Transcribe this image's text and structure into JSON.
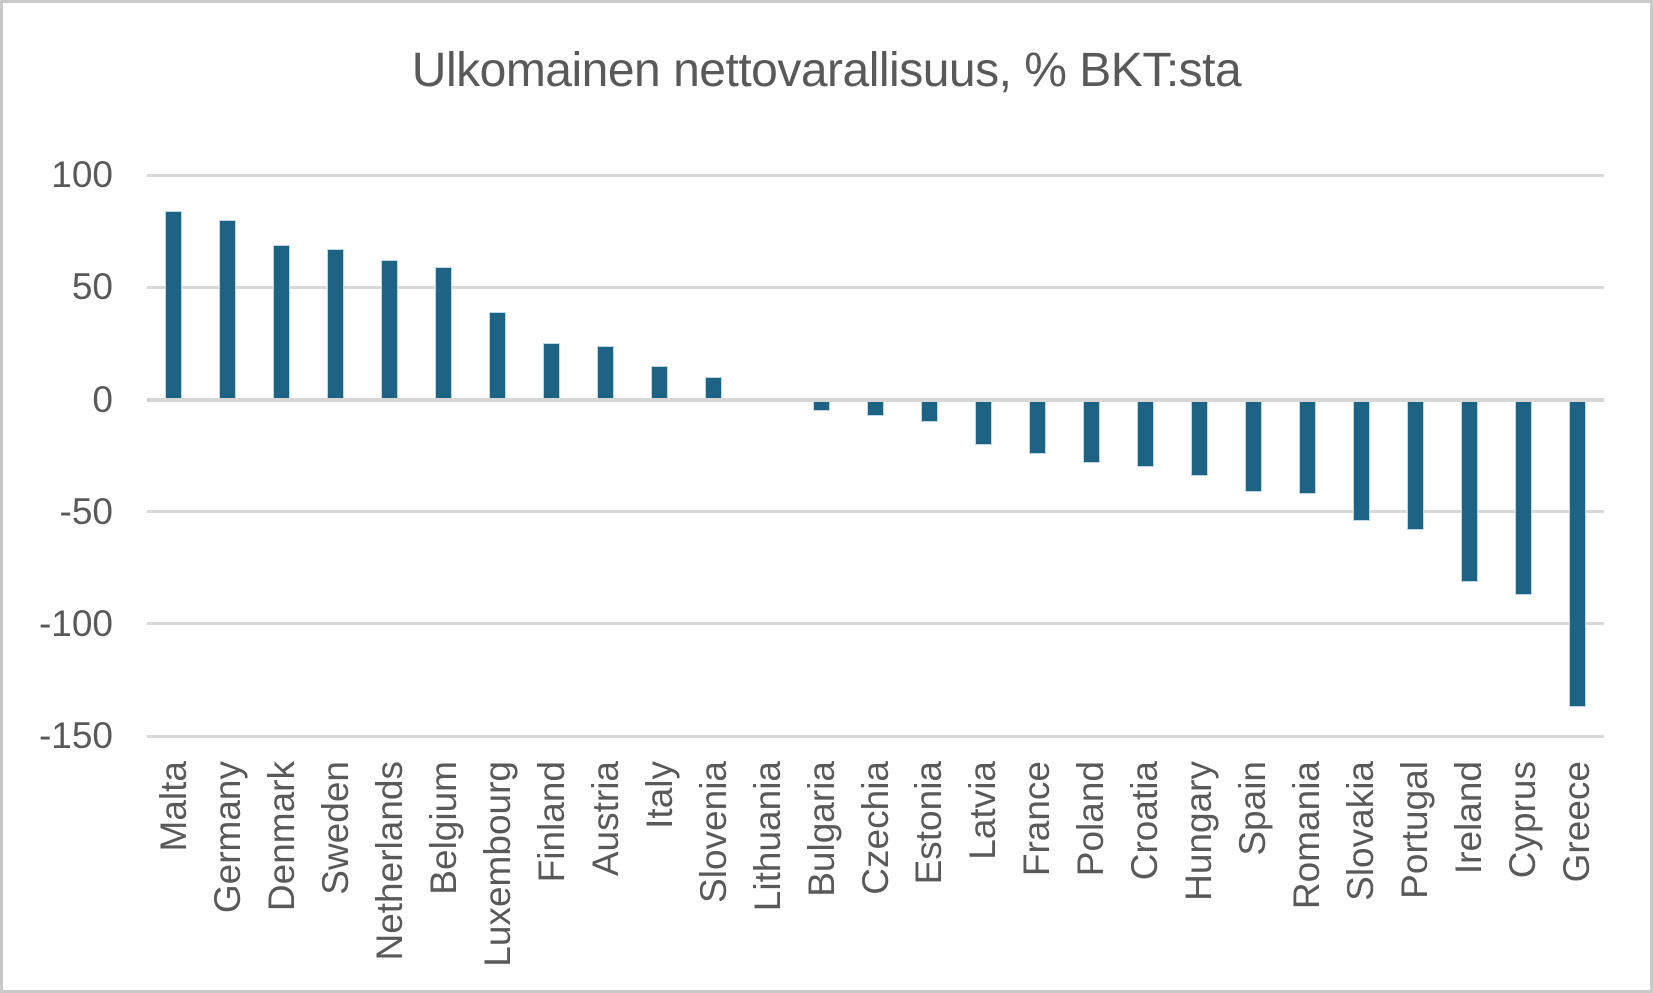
{
  "title": "Ulkomainen nettovarallisuus, % BKT:sta",
  "chart_data": {
    "type": "bar",
    "title": "Ulkomainen nettovarallisuus, % BKT:sta",
    "categories": [
      "Malta",
      "Germany",
      "Denmark",
      "Sweden",
      "Netherlands",
      "Belgium",
      "Luxembourg",
      "Finland",
      "Austria",
      "Italy",
      "Slovenia",
      "Lithuania",
      "Bulgaria",
      "Czechia",
      "Estonia",
      "Latvia",
      "France",
      "Poland",
      "Croatia",
      "Hungary",
      "Spain",
      "Romania",
      "Slovakia",
      "Portugal",
      "Ireland",
      "Cyprus",
      "Greece"
    ],
    "values": [
      84,
      80,
      69,
      67,
      62,
      59,
      39,
      25,
      24,
      15,
      10,
      -1,
      -5,
      -7,
      -10,
      -20,
      -24,
      -28,
      -30,
      -34,
      -41,
      -42,
      -54,
      -58,
      -81,
      -87,
      -137
    ],
    "xlabel": "",
    "ylabel": "",
    "ylim": [
      -150,
      100
    ],
    "yticks": [
      100,
      50,
      0,
      -50,
      -100,
      -150
    ],
    "grid": "horizontal",
    "legend": false,
    "bar_color": "#1E6284",
    "bar_edge_color": "#BFD7E4",
    "gridline_color": "#D9D9D9",
    "text_color": "#595959"
  }
}
